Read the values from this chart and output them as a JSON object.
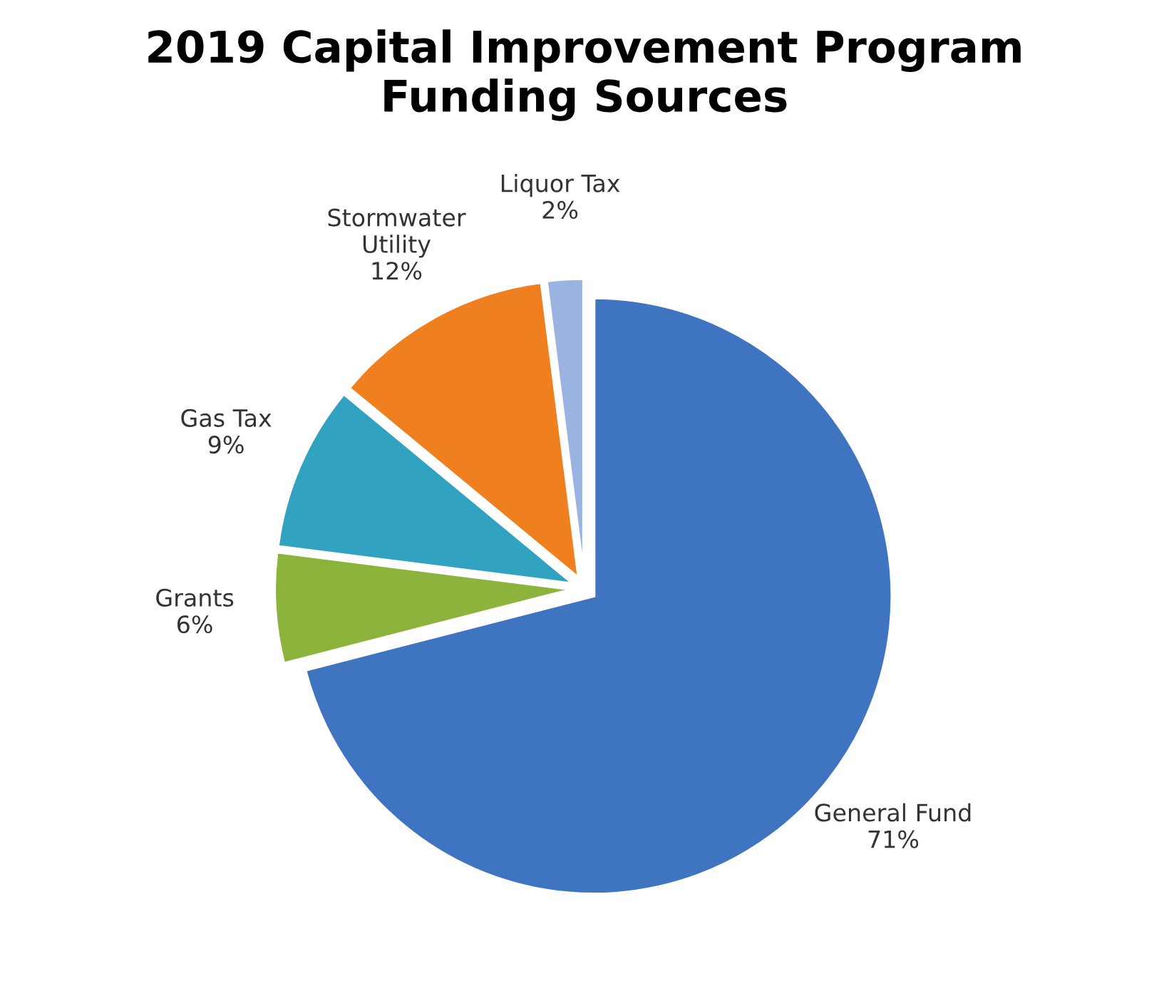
{
  "chart_data": {
    "type": "pie",
    "title": "2019 Capital Improvement Program\nFunding Sources",
    "categories": [
      "General Fund",
      "Grants",
      "Gas Tax",
      "Stormwater\nUtility",
      "Liquor Tax"
    ],
    "values": [
      71,
      6,
      9,
      12,
      2
    ],
    "value_labels": [
      "71%",
      "6%",
      "9%",
      "12%",
      "2%"
    ],
    "colors": [
      "#3f74c1",
      "#8cb43c",
      "#31a2c0",
      "#ef7f1f",
      "#9bb3e0"
    ],
    "legend": false
  }
}
